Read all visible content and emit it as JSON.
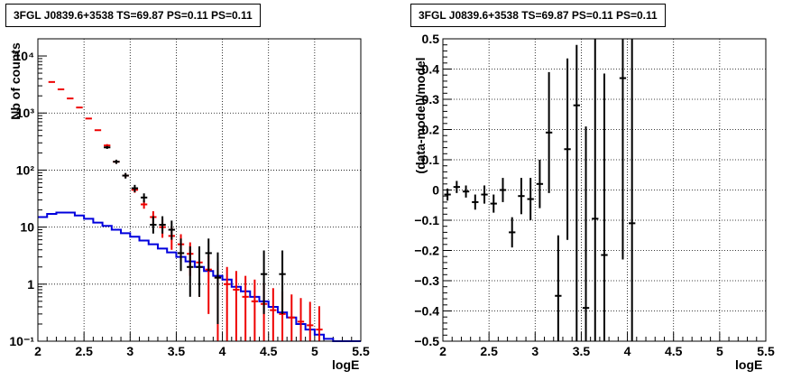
{
  "panels": [
    {
      "title_box": "3FGL J0839.6+3538 TS=69.87 PS=0.11 PS=0.11",
      "xlabel": "logE",
      "ylabel": "Nb of counts"
    },
    {
      "title_box": "3FGL J0839.6+3538 TS=69.87 PS=0.11 PS=0.11",
      "xlabel": "logE",
      "ylabel": "(data-model)/model"
    }
  ],
  "chart_data": [
    {
      "type": "line",
      "title": "3FGL J0839.6+3538 TS=69.87 PS=0.11 PS=0.11",
      "xlabel": "logE",
      "ylabel": "Nb of counts",
      "xlim": [
        2,
        5.5
      ],
      "ylim": [
        0.1,
        20000
      ],
      "yscale": "log",
      "grid": true,
      "xticks": [
        2,
        2.5,
        3,
        3.5,
        4,
        4.5,
        5,
        5.5
      ],
      "xtick_labels": [
        "2",
        "2.5",
        "3",
        "3.5",
        "4",
        "4.5",
        "5",
        "5.5"
      ],
      "yticks": [
        0.1,
        1,
        10,
        100,
        1000,
        10000
      ],
      "ytick_labels": [
        "10⁻¹",
        "1",
        "10",
        "10²",
        "10³",
        "10⁴"
      ],
      "colors": {
        "data": "#000000",
        "model": "#ee0000",
        "component": "#0000dd"
      },
      "bin_width": 0.1,
      "series": [
        {
          "style": "histogram",
          "color": "#0000dd",
          "x": [
            2.05,
            2.15,
            2.25,
            2.35,
            2.45,
            2.55,
            2.65,
            2.75,
            2.85,
            2.95,
            3.05,
            3.15,
            3.25,
            3.35,
            3.45,
            3.55,
            3.65,
            3.75,
            3.85,
            3.95,
            4.05,
            4.15,
            4.25,
            4.35,
            4.45,
            4.55,
            4.65,
            4.75,
            4.85,
            4.95,
            5.05,
            5.15,
            5.25,
            5.35,
            5.45
          ],
          "values": [
            15,
            17,
            18,
            18,
            16,
            14,
            12,
            10.5,
            9,
            7.8,
            6.8,
            5.8,
            5,
            4.2,
            3.6,
            3,
            2.5,
            2,
            1.7,
            1.4,
            1.2,
            0.9,
            0.75,
            0.6,
            0.5,
            0.4,
            0.32,
            0.26,
            0.2,
            0.16,
            0.13,
            0.11,
            0.1,
            0.1,
            0.1
          ]
        },
        {
          "style": "crosses",
          "color": "#ee0000",
          "x": [
            2.15,
            2.25,
            2.35,
            2.45,
            2.55,
            2.65,
            2.75,
            2.85,
            2.95,
            3.05,
            3.15,
            3.25,
            3.35,
            3.45,
            3.55,
            3.65,
            3.75,
            3.85,
            3.95,
            4.05,
            4.15,
            4.25,
            4.35,
            4.45,
            4.55,
            4.65,
            4.75,
            4.85,
            4.95,
            5.05
          ],
          "y": [
            3500,
            2600,
            1800,
            1250,
            800,
            500,
            270,
            140,
            80,
            45,
            25,
            15,
            10,
            7,
            5,
            3.4,
            2.4,
            1.8,
            1.3,
            1.0,
            0.8,
            0.6,
            0.5,
            0.45,
            0.35,
            0.3,
            0.26,
            0.22,
            0.19,
            0.16
          ],
          "yerr_low": [
            0,
            0,
            0,
            0,
            0,
            0,
            15,
            10,
            7,
            5,
            4,
            4,
            3.5,
            3,
            2.5,
            2,
            1.8,
            1.5,
            1.2,
            1.0,
            0.8,
            0.6,
            0.5,
            0.45,
            0.35,
            0.3,
            0.26,
            0.22,
            0.19,
            0.16
          ],
          "yerr_high": [
            0,
            0,
            0,
            0,
            0,
            0,
            15,
            10,
            7,
            5,
            4,
            4,
            3.5,
            3,
            2.5,
            2,
            1.6,
            1.4,
            1.2,
            1.0,
            0.9,
            0.8,
            0.7,
            0.6,
            0.5,
            0.45,
            0.4,
            0.35,
            0.3,
            0.25
          ]
        },
        {
          "style": "crosses",
          "color": "#000000",
          "x": [
            2.75,
            2.85,
            2.95,
            3.05,
            3.15,
            3.25,
            3.35,
            3.45,
            3.55,
            3.65,
            3.75,
            3.85,
            3.95,
            4.45,
            4.65
          ],
          "y": [
            250,
            140,
            80,
            48,
            33,
            11,
            11,
            9,
            3.5,
            2,
            2,
            3.5,
            1.3,
            1.5,
            1.5
          ],
          "yerr_low": [
            15,
            12,
            9,
            7,
            6,
            3.3,
            3.3,
            3,
            1.8,
            1.4,
            1.4,
            1.8,
            1.1,
            1.2,
            1.2
          ],
          "yerr_high": [
            15,
            12,
            9,
            7,
            6,
            4.5,
            4.5,
            4,
            2.8,
            2.6,
            2.6,
            2.8,
            2.3,
            2.4,
            2.4
          ]
        }
      ]
    },
    {
      "type": "scatter",
      "title": "3FGL J0839.6+3538 TS=69.87 PS=0.11 PS=0.11",
      "xlabel": "logE",
      "ylabel": "(data-model)/model",
      "xlim": [
        2,
        5.5
      ],
      "ylim": [
        -0.5,
        0.5
      ],
      "grid": true,
      "xticks": [
        2,
        2.5,
        3,
        3.5,
        4,
        4.5,
        5,
        5.5
      ],
      "xtick_labels": [
        "2",
        "2.5",
        "3",
        "3.5",
        "4",
        "4.5",
        "5",
        "5.5"
      ],
      "yticks": [
        -0.5,
        -0.4,
        -0.3,
        -0.2,
        -0.1,
        0,
        0.1,
        0.2,
        0.3,
        0.4,
        0.5
      ],
      "ytick_labels": [
        "−0.5",
        "−0.4",
        "−0.3",
        "−0.2",
        "−0.1",
        "0",
        "0.1",
        "0.2",
        "0.3",
        "0.4",
        "0.5"
      ],
      "color": "#000000",
      "bin_width": 0.1,
      "points": {
        "x": [
          2.05,
          2.15,
          2.25,
          2.35,
          2.45,
          2.55,
          2.65,
          2.75,
          2.85,
          2.95,
          3.05,
          3.15,
          3.25,
          3.35,
          3.45,
          3.55,
          3.65,
          3.75,
          3.95,
          4.05
        ],
        "y": [
          -0.015,
          0.01,
          -0.005,
          -0.04,
          -0.015,
          -0.045,
          0.0,
          -0.14,
          -0.02,
          -0.03,
          0.02,
          0.19,
          -0.35,
          0.135,
          0.28,
          -0.39,
          -0.095,
          -0.215,
          0.37,
          -0.11
        ],
        "yerr_low": [
          0.02,
          0.02,
          0.02,
          0.025,
          0.03,
          0.03,
          0.04,
          0.05,
          0.06,
          0.07,
          0.08,
          0.2,
          0.6,
          0.3,
          0.8,
          0.6,
          0.6,
          0.6,
          0.6,
          0.6
        ],
        "yerr_high": [
          0.02,
          0.02,
          0.02,
          0.025,
          0.03,
          0.03,
          0.04,
          0.05,
          0.06,
          0.07,
          0.08,
          0.2,
          0.2,
          0.3,
          0.2,
          0.6,
          0.6,
          0.6,
          0.2,
          0.7
        ]
      }
    }
  ]
}
